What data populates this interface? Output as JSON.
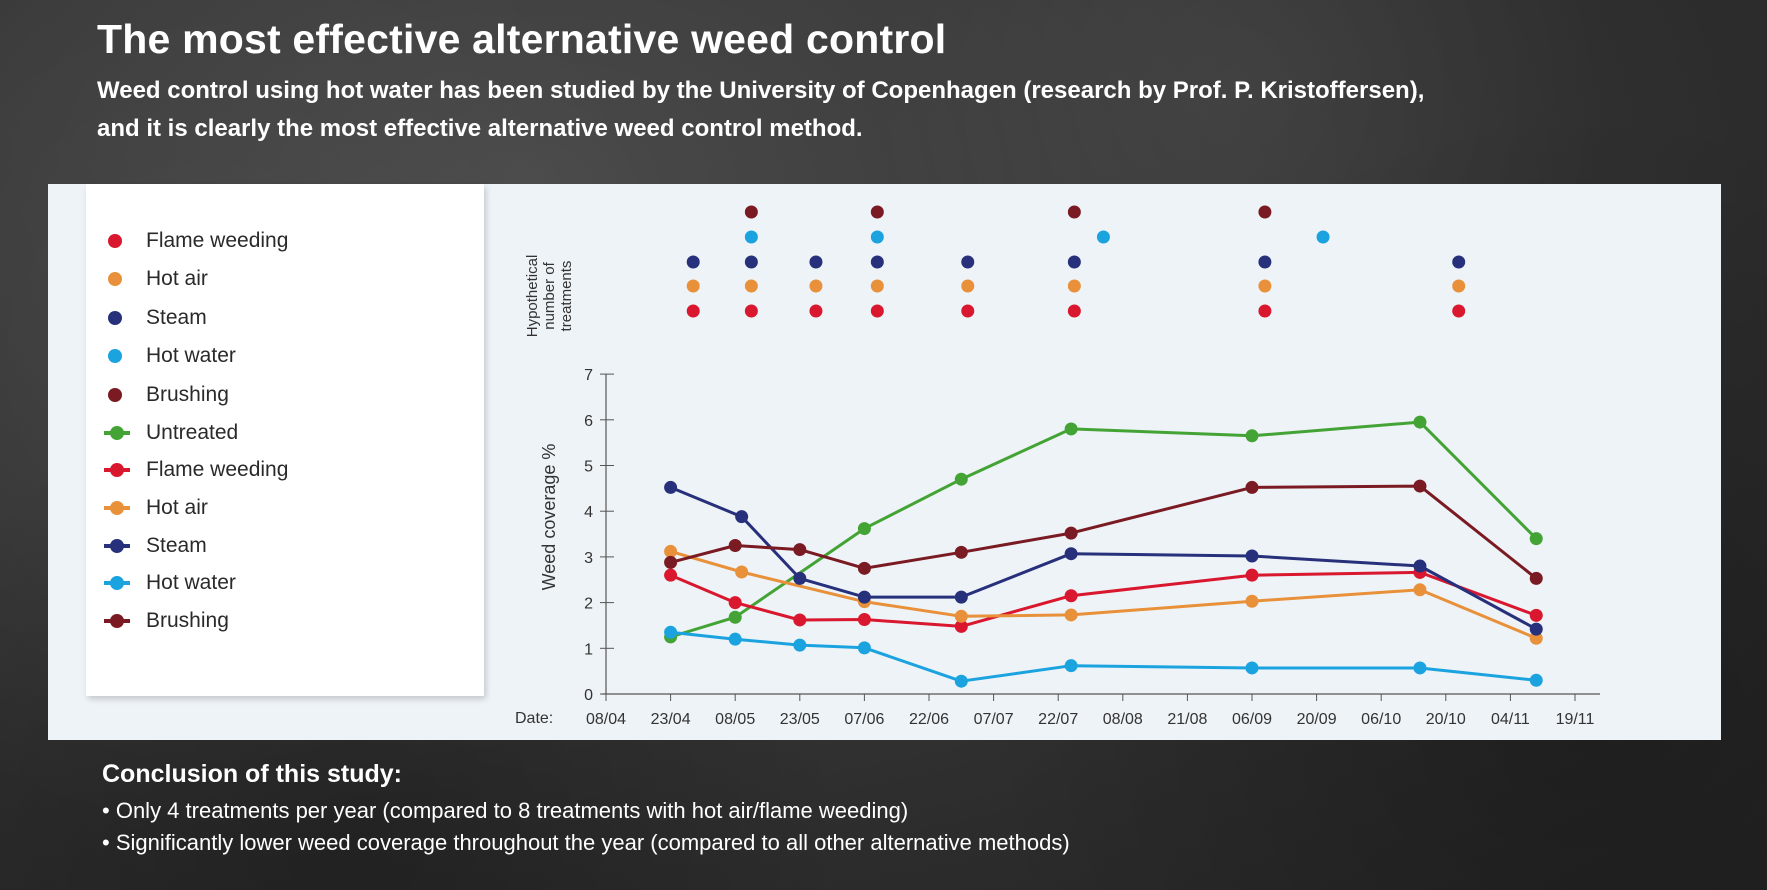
{
  "page": {
    "title": "The most effective alternative weed control",
    "subtitle_line1": "Weed control using hot water has been studied by the University of Copenhagen (research by Prof. P. Kristoffersen),",
    "subtitle_line2": "and it is clearly the most effective alternative weed control method."
  },
  "legend": {
    "dots": [
      {
        "label": "Flame weeding",
        "color": "#d9172e"
      },
      {
        "label": "Hot air",
        "color": "#e8913a"
      },
      {
        "label": "Steam",
        "color": "#27307a"
      },
      {
        "label": "Hot water",
        "color": "#1ba3e0"
      },
      {
        "label": "Brushing",
        "color": "#7a1a22"
      }
    ],
    "lines": [
      {
        "label": "Untreated",
        "color": "#44a335"
      },
      {
        "label": "Flame weeding",
        "color": "#d9172e"
      },
      {
        "label": "Hot air",
        "color": "#e8913a"
      },
      {
        "label": "Steam",
        "color": "#27307a"
      },
      {
        "label": "Hot water",
        "color": "#1ba3e0"
      },
      {
        "label": "Brushing",
        "color": "#7a1a22"
      }
    ]
  },
  "chart_data": {
    "type": "line",
    "title": "",
    "xlabel": "Date:",
    "ylabel": "Weed coverage %",
    "treatments_label": [
      "Hypothetical",
      "number of",
      "treatments"
    ],
    "ylim": [
      0,
      7
    ],
    "yticks": [
      0,
      1,
      2,
      3,
      4,
      5,
      6,
      7
    ],
    "xticks": [
      "08/04",
      "23/04",
      "08/05",
      "23/05",
      "07/06",
      "22/06",
      "07/07",
      "22/07",
      "08/08",
      "21/08",
      "06/09",
      "20/09",
      "06/10",
      "20/10",
      "04/11",
      "19/11"
    ],
    "series": [
      {
        "name": "Untreated",
        "color": "#44a335",
        "points": [
          [
            1.0,
            1.25
          ],
          [
            2.0,
            1.68
          ],
          [
            4.0,
            3.62
          ],
          [
            5.5,
            4.7
          ],
          [
            7.2,
            5.8
          ],
          [
            10.0,
            5.65
          ],
          [
            12.6,
            5.95
          ],
          [
            14.4,
            3.4
          ]
        ]
      },
      {
        "name": "Flame weeding",
        "color": "#d9172e",
        "points": [
          [
            1.0,
            2.6
          ],
          [
            2.0,
            2.0
          ],
          [
            3.0,
            1.62
          ],
          [
            4.0,
            1.63
          ],
          [
            5.5,
            1.48
          ],
          [
            7.2,
            2.15
          ],
          [
            10.0,
            2.6
          ],
          [
            12.6,
            2.66
          ],
          [
            14.4,
            1.72
          ]
        ]
      },
      {
        "name": "Hot air",
        "color": "#e8913a",
        "points": [
          [
            1.0,
            3.12
          ],
          [
            2.1,
            2.67
          ],
          [
            4.0,
            2.02
          ],
          [
            5.5,
            1.7
          ],
          [
            7.2,
            1.73
          ],
          [
            10.0,
            2.03
          ],
          [
            12.6,
            2.28
          ],
          [
            14.4,
            1.22
          ]
        ]
      },
      {
        "name": "Steam",
        "color": "#27307a",
        "points": [
          [
            1.0,
            4.52
          ],
          [
            2.1,
            3.88
          ],
          [
            3.0,
            2.53
          ],
          [
            4.0,
            2.12
          ],
          [
            5.5,
            2.12
          ],
          [
            7.2,
            3.07
          ],
          [
            10.0,
            3.02
          ],
          [
            12.6,
            2.8
          ],
          [
            14.4,
            1.42
          ]
        ]
      },
      {
        "name": "Hot water",
        "color": "#1ba3e0",
        "points": [
          [
            1.0,
            1.35
          ],
          [
            2.0,
            1.2
          ],
          [
            3.0,
            1.07
          ],
          [
            4.0,
            1.01
          ],
          [
            5.5,
            0.28
          ],
          [
            7.2,
            0.62
          ],
          [
            10.0,
            0.57
          ],
          [
            12.6,
            0.57
          ],
          [
            14.4,
            0.3
          ]
        ]
      },
      {
        "name": "Brushing",
        "color": "#7a1a22",
        "points": [
          [
            1.0,
            2.88
          ],
          [
            2.0,
            3.25
          ],
          [
            3.0,
            3.16
          ],
          [
            4.0,
            2.75
          ],
          [
            5.5,
            3.1
          ],
          [
            7.2,
            3.52
          ],
          [
            10.0,
            4.52
          ],
          [
            12.6,
            4.55
          ],
          [
            14.4,
            2.53
          ]
        ]
      }
    ],
    "treatments": [
      {
        "name": "Brushing",
        "color": "#7a1a22",
        "dates": [
          2.25,
          4.2,
          7.25,
          10.2
        ]
      },
      {
        "name": "Hot water",
        "color": "#1ba3e0",
        "dates": [
          2.25,
          4.2,
          7.7,
          11.1
        ]
      },
      {
        "name": "Steam",
        "color": "#27307a",
        "dates": [
          1.35,
          2.25,
          3.25,
          4.2,
          5.6,
          7.25,
          10.2,
          13.2
        ]
      },
      {
        "name": "Hot air",
        "color": "#e8913a",
        "dates": [
          1.35,
          2.25,
          3.25,
          4.2,
          5.6,
          7.25,
          10.2,
          13.2
        ]
      },
      {
        "name": "Flame weeding",
        "color": "#d9172e",
        "dates": [
          1.35,
          2.25,
          3.25,
          4.2,
          5.6,
          7.25,
          10.2,
          13.2
        ]
      }
    ],
    "grid": false
  },
  "conclusion": {
    "title": "Conclusion of this study:",
    "items": [
      "Only 4 treatments per year (compared to 8 treatments with hot air/flame weeding)",
      "Significantly lower weed coverage throughout the year (compared to all other alternative methods)"
    ]
  }
}
